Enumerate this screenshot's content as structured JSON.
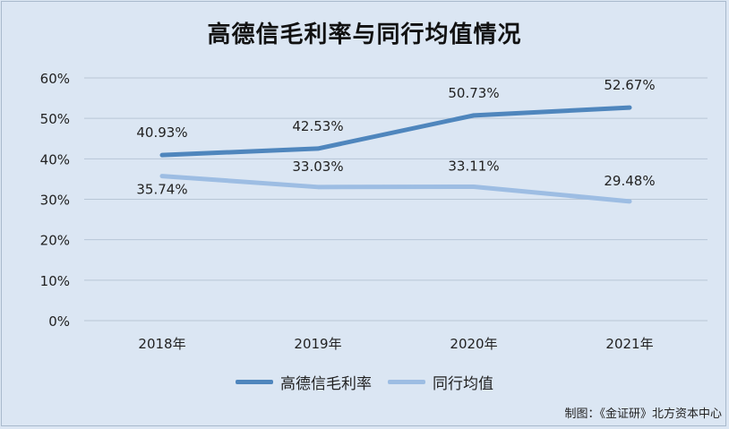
{
  "chart_data": {
    "type": "line",
    "title": "高德信毛利率与同行均值情况",
    "categories": [
      "2018年",
      "2019年",
      "2020年",
      "2021年"
    ],
    "series": [
      {
        "name": "高德信毛利率",
        "values": [
          40.93,
          42.53,
          50.73,
          52.67
        ],
        "labels": [
          "40.93%",
          "42.53%",
          "50.73%",
          "52.67%"
        ],
        "color": "#4f86bd"
      },
      {
        "name": "同行均值",
        "values": [
          35.74,
          33.03,
          33.11,
          29.48
        ],
        "labels": [
          "35.74%",
          "33.03%",
          "33.11%",
          "29.48%"
        ],
        "color": "#9dbde3"
      }
    ],
    "ylim": [
      0,
      60
    ],
    "yticks": [
      "0%",
      "10%",
      "20%",
      "30%",
      "40%",
      "50%",
      "60%"
    ],
    "grid": true,
    "legend_position": "bottom"
  },
  "source_note": "制图：《金证研》北方资本中心"
}
